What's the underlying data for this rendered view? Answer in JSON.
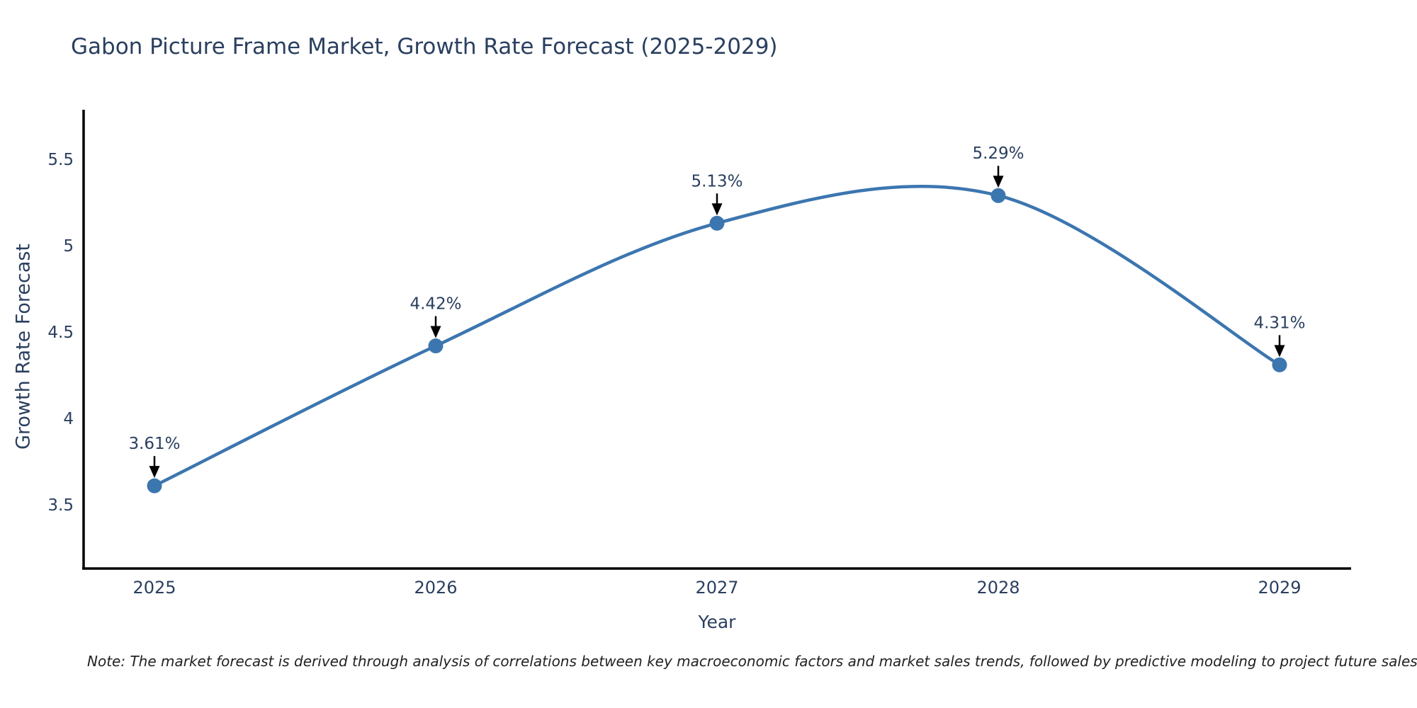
{
  "page": {
    "note": "Note: The market forecast is derived through analysis of correlations between key macroeconomic factors and market sales trends, followed by predictive modeling to project future sales"
  },
  "chart_data": {
    "type": "line",
    "title": "Gabon Picture Frame Market, Growth Rate Forecast (2025-2029)",
    "xlabel": "Year",
    "ylabel": "Growth Rate Forecast",
    "categories": [
      "2025",
      "2026",
      "2027",
      "2028",
      "2029"
    ],
    "series": [
      {
        "name": "Growth Rate Forecast",
        "values": [
          3.61,
          4.42,
          5.13,
          5.29,
          4.31
        ]
      }
    ],
    "data_labels": [
      "3.61%",
      "4.42%",
      "5.13%",
      "5.29%",
      "4.31%"
    ],
    "ytick_labels": [
      "3.5",
      "4",
      "4.5",
      "5",
      "5.5"
    ],
    "ytick_values": [
      3.5,
      4,
      4.5,
      5,
      5.5
    ],
    "ylim": [
      3.13,
      5.79
    ],
    "grid": false,
    "line_shape": "spline",
    "legend_position": "none",
    "marker": "circle",
    "annotation_arrow": "down",
    "colors": {
      "series": "#3C76AF",
      "axis_line": "#000000",
      "tick_text": "#2a3f5f",
      "annotation_text": "#2a3f5f",
      "arrow": "#000000",
      "background": "#ffffff"
    }
  }
}
